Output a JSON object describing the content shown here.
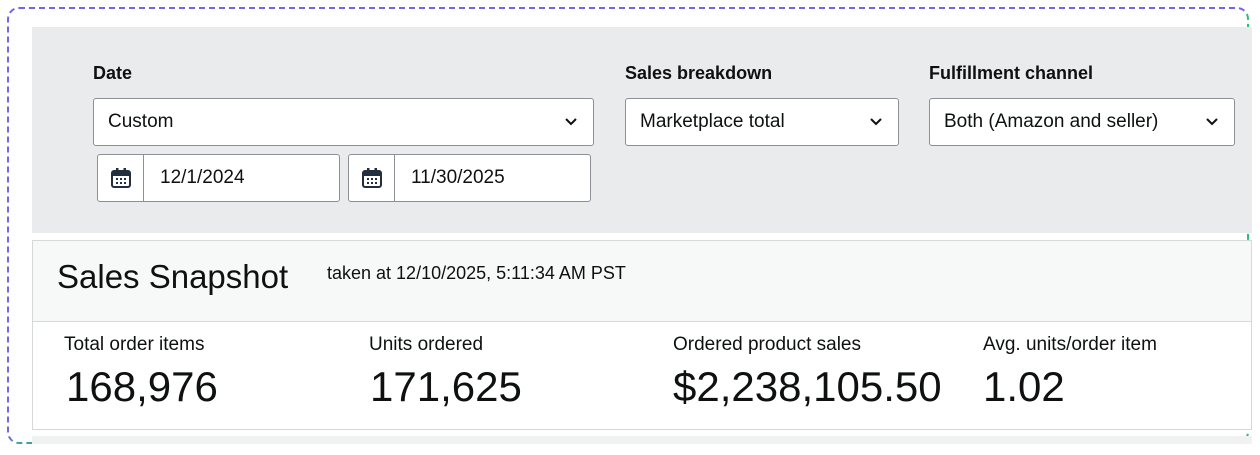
{
  "filters": {
    "date": {
      "label": "Date",
      "selected": "Custom",
      "start": "12/1/2024",
      "end": "11/30/2025"
    },
    "sales_breakdown": {
      "label": "Sales breakdown",
      "selected": "Marketplace total"
    },
    "fulfillment_channel": {
      "label": "Fulfillment channel",
      "selected": "Both (Amazon and seller)"
    }
  },
  "snapshot": {
    "title": "Sales Snapshot",
    "taken": "taken at 12/10/2025, 5:11:34 AM PST",
    "metrics": [
      {
        "label": "Total order items",
        "value": "168,976"
      },
      {
        "label": "Units ordered",
        "value": "171,625"
      },
      {
        "label": "Ordered product sales",
        "value": "$2,238,105.50"
      },
      {
        "label": "Avg. units/order item",
        "value": "1.02"
      }
    ]
  },
  "icons": {
    "calendar": "calendar-icon",
    "dropdown": "chevron-down-icon"
  },
  "colors": {
    "filter_bg": "#eaebec",
    "header_bg": "#f7f8f8",
    "text": "#0f1111",
    "frame_start": "#7b61e6",
    "frame_end": "#2dbd7a"
  }
}
